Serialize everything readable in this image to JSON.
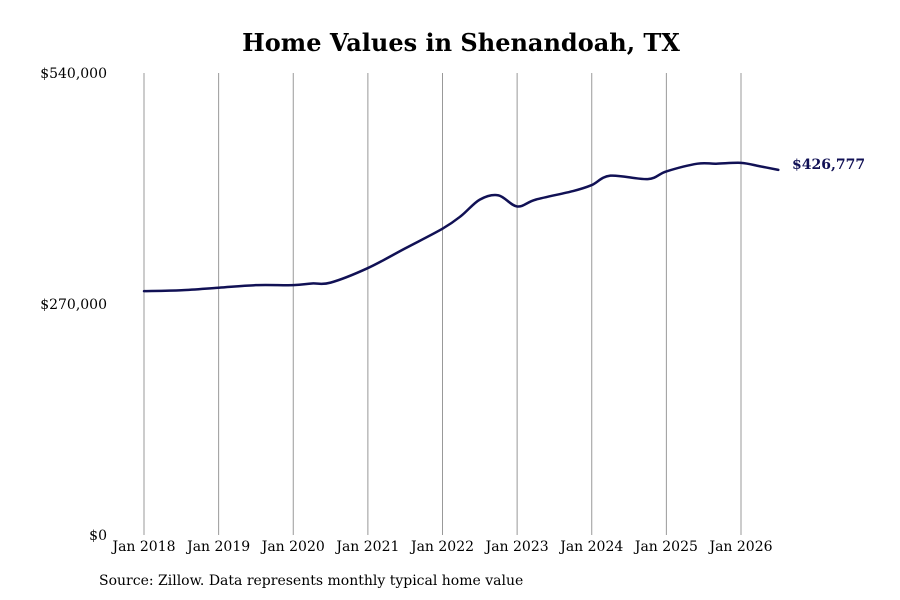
{
  "colors": {
    "line": "#111155",
    "grid": "#999999",
    "text": "#000000"
  },
  "chart_data": {
    "type": "line",
    "title": "Home Values in Shenandoah, TX",
    "xlabel": "",
    "ylabel": "",
    "ylim": [
      0,
      540000
    ],
    "yticks": [
      0,
      270000,
      540000
    ],
    "ytick_labels": [
      "$0",
      "$270,000",
      "$540,000"
    ],
    "xticks": [
      "2018-01",
      "2019-01",
      "2020-01",
      "2021-01",
      "2022-01",
      "2023-01",
      "2024-01",
      "2025-01",
      "2026-01"
    ],
    "xtick_labels": [
      "Jan 2018",
      "Jan 2019",
      "Jan 2020",
      "Jan 2021",
      "Jan 2022",
      "Jan 2023",
      "Jan 2024",
      "Jan 2025",
      "Jan 2026"
    ],
    "grid": "vertical",
    "end_label": "$426,777",
    "series": [
      {
        "name": "",
        "x": [
          "2018-01",
          "2018-07",
          "2019-01",
          "2019-07",
          "2020-01",
          "2020-04",
          "2020-07",
          "2021-01",
          "2021-07",
          "2022-01",
          "2022-04",
          "2022-07",
          "2022-10",
          "2023-01",
          "2023-04",
          "2023-10",
          "2024-01",
          "2024-04",
          "2024-10",
          "2025-01",
          "2025-06",
          "2025-09",
          "2026-01",
          "2026-04",
          "2026-07"
        ],
        "values": [
          285000,
          286000,
          289000,
          292000,
          292000,
          294000,
          295000,
          312000,
          335000,
          358000,
          373000,
          392000,
          397000,
          384000,
          392000,
          402000,
          409000,
          420000,
          416000,
          425000,
          434000,
          434000,
          435000,
          431000,
          426777
        ]
      }
    ]
  },
  "source_note": "Source: Zillow. Data represents monthly typical home value"
}
